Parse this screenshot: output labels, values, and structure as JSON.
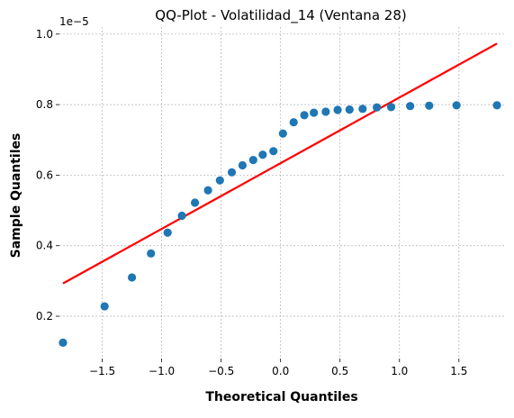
{
  "chart_data": {
    "type": "scatter",
    "title": "QQ-Plot - Volatilidad_14 (Ventana 28)",
    "xlabel": "Theoretical Quantiles",
    "ylabel": "Sample Quantiles",
    "y_offset_label": "1e−5",
    "xlim": [
      -1.86,
      1.88
    ],
    "ylim": [
      0.08,
      1.02
    ],
    "xticks": [
      -1.5,
      -1.0,
      -0.5,
      0.0,
      0.5,
      1.0,
      1.5
    ],
    "xtick_labels": [
      "−1.5",
      "−1.0",
      "−0.5",
      "0.0",
      "0.5",
      "1.0",
      "1.5"
    ],
    "yticks": [
      0.2,
      0.4,
      0.6,
      0.8,
      1.0
    ],
    "ytick_labels": [
      "0.2",
      "0.4",
      "0.6",
      "0.8",
      "1.0"
    ],
    "grid": true,
    "point_color": "#1f77b4",
    "line_color": "#ff0000",
    "series": [
      {
        "type": "scatter",
        "x": [
          -1.83,
          -1.48,
          -1.25,
          -1.09,
          -0.95,
          -0.83,
          -0.72,
          -0.61,
          -0.51,
          -0.41,
          -0.32,
          -0.23,
          -0.15,
          -0.06,
          0.02,
          0.11,
          0.2,
          0.28,
          0.38,
          0.48,
          0.58,
          0.69,
          0.81,
          0.93,
          1.09,
          1.25,
          1.48,
          1.82
        ],
        "y": [
          0.125,
          0.228,
          0.31,
          0.378,
          0.437,
          0.485,
          0.522,
          0.557,
          0.585,
          0.608,
          0.628,
          0.643,
          0.658,
          0.668,
          0.718,
          0.75,
          0.77,
          0.777,
          0.78,
          0.785,
          0.786,
          0.788,
          0.792,
          0.793,
          0.796,
          0.797,
          0.798,
          0.798
        ]
      },
      {
        "type": "line",
        "x": [
          -1.83,
          1.82
        ],
        "y": [
          0.293,
          0.973
        ]
      }
    ]
  }
}
